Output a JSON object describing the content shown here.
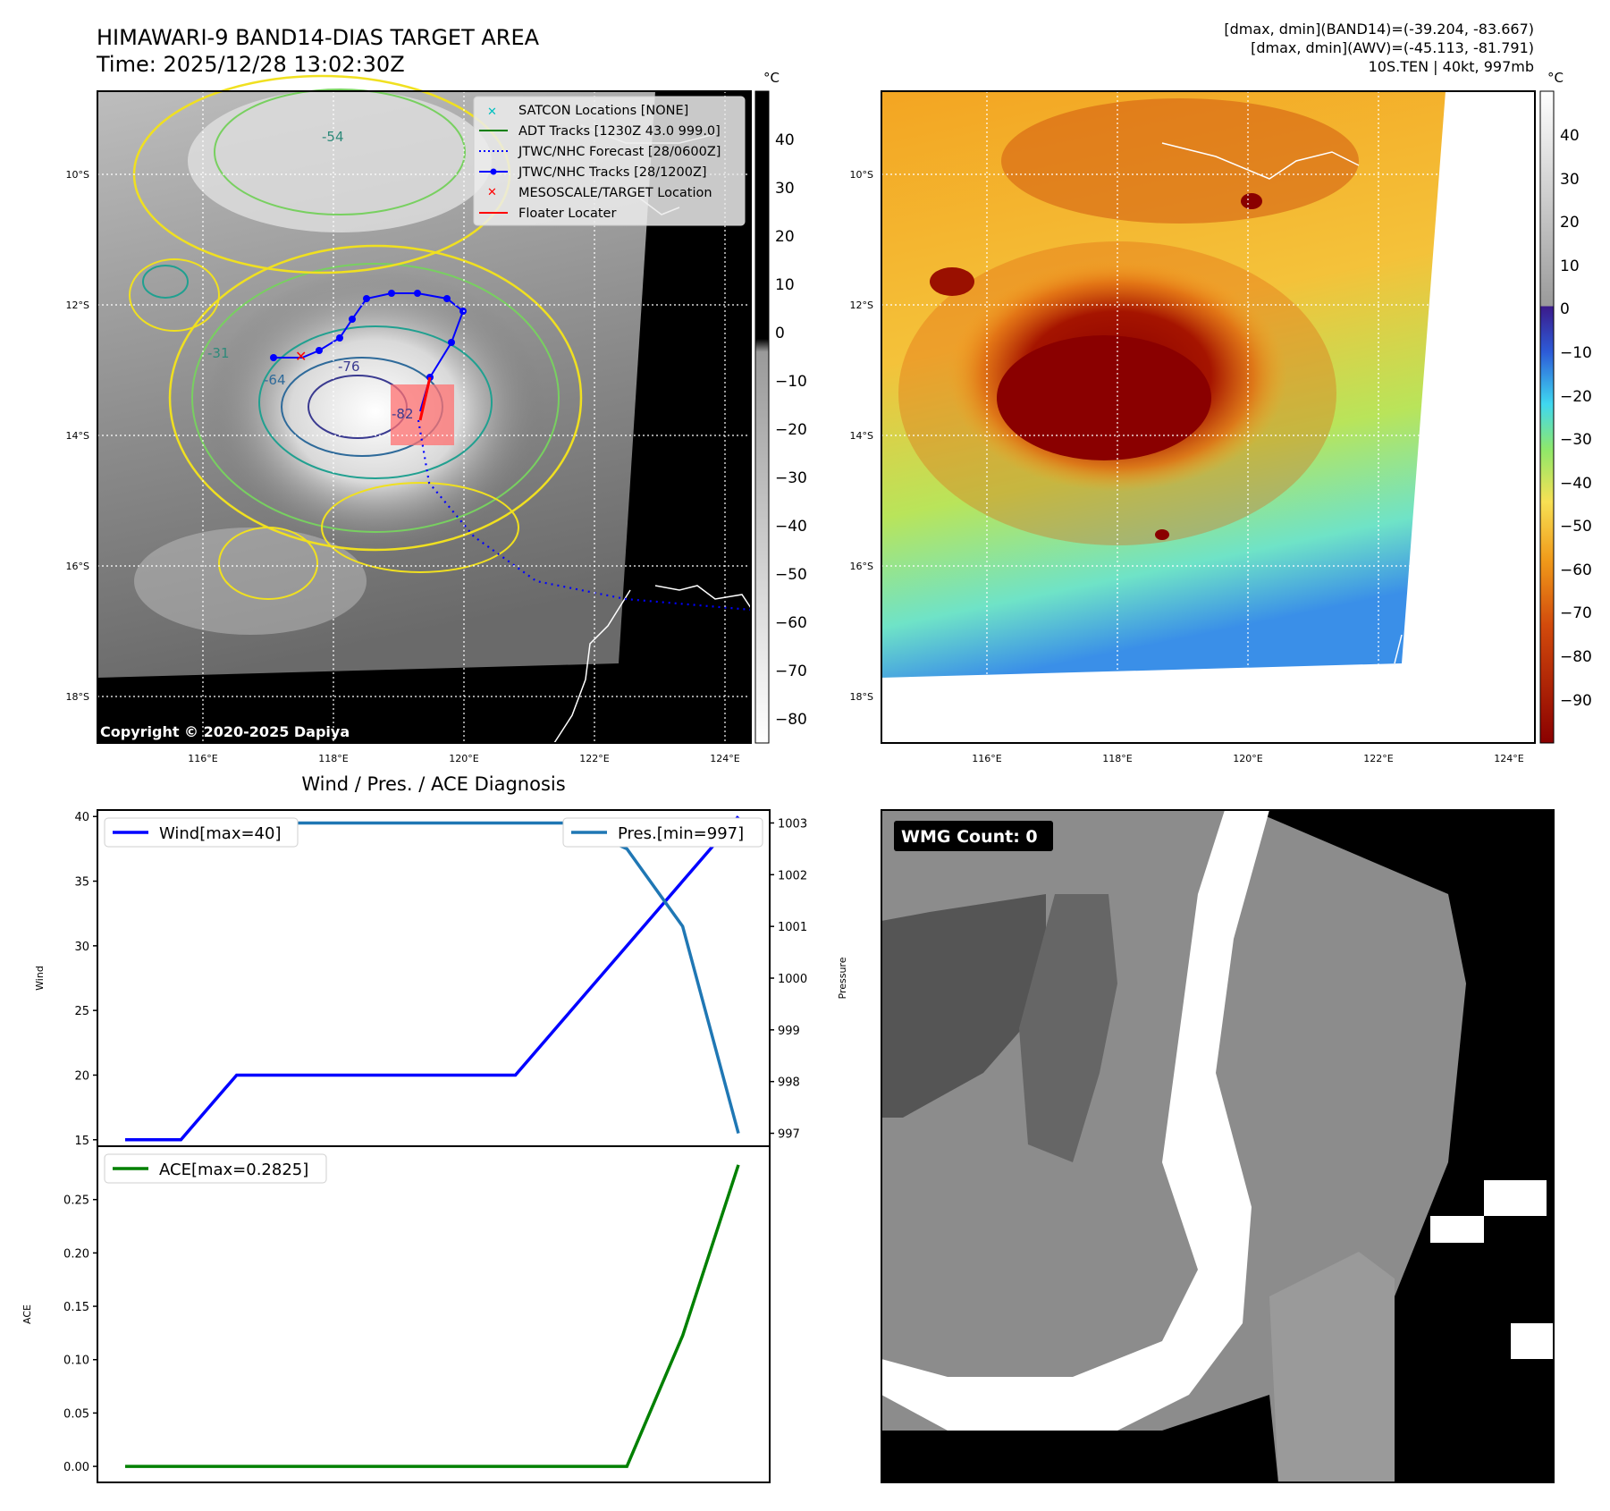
{
  "header": {
    "title_line1": "HIMAWARI-9 BAND14-DIAS TARGET AREA",
    "title_line2": "Time: 2025/12/28 13:02:30Z",
    "stats_line1": "[dmax, dmin](BAND14)=(-39.204, -83.667)",
    "stats_line2": "[dmax, dmin](AWV)=(-45.113, -81.791)",
    "stats_line3": "10S.TEN | 40kt, 997mb",
    "copyright": "Copyright © 2020-2025 Dapiya"
  },
  "map": {
    "lat_ticks": [
      "10°S",
      "12°S",
      "14°S",
      "16°S",
      "18°S"
    ],
    "lon_ticks": [
      "116°E",
      "118°E",
      "120°E",
      "122°E",
      "124°E"
    ],
    "contour_labels": [
      "-54",
      "-31",
      "-64",
      "-76",
      "-82"
    ],
    "legend": [
      {
        "label": "SATCON Locations [NONE]",
        "marker": "x",
        "color": "#00c0c0"
      },
      {
        "label": "ADT Tracks [1230Z 43.0 999.0]",
        "marker": "line",
        "color": "#007f00"
      },
      {
        "label": "JTWC/NHC Forecast [28/0600Z]",
        "marker": "dotted",
        "color": "#0000ff"
      },
      {
        "label": "JTWC/NHC Tracks [28/1200Z]",
        "marker": "line-dot",
        "color": "#0000ff"
      },
      {
        "label": "MESOSCALE/TARGET Location",
        "marker": "x",
        "color": "#ff0000"
      },
      {
        "label": "Floater Locater",
        "marker": "line",
        "color": "#ff0000"
      }
    ],
    "left_colorbar": {
      "unit": "°C",
      "ticks": [
        "40",
        "30",
        "20",
        "10",
        "0",
        "−10",
        "−20",
        "−30",
        "−40",
        "−50",
        "−60",
        "−70",
        "−80"
      ]
    },
    "right_colorbar": {
      "unit": "°C",
      "ticks": [
        "40",
        "30",
        "20",
        "10",
        "0",
        "−10",
        "−20",
        "−30",
        "−40",
        "−50",
        "−60",
        "−70",
        "−80",
        "−90"
      ]
    }
  },
  "wmg": {
    "label": "WMG Count: 0"
  },
  "chart_data": [
    {
      "type": "line",
      "title": "Wind / Pres. / ACE Diagnosis",
      "x": [
        0,
        1,
        2,
        3,
        4,
        5,
        6,
        7,
        8,
        9,
        10,
        11
      ],
      "series": [
        {
          "name": "Wind[max=40]",
          "axis": "left",
          "values": [
            15,
            15,
            20,
            20,
            20,
            20,
            20,
            20,
            25,
            30,
            35,
            40
          ],
          "color": "#0000ff"
        },
        {
          "name": "Pres.[min=997]",
          "axis": "right",
          "values": [
            1003,
            1003,
            1003,
            1003,
            1003,
            1003,
            1003,
            1003,
            1003,
            1002.5,
            1001,
            997
          ],
          "color": "#1f77b4"
        }
      ],
      "ylabel": "Wind",
      "ylabel_right": "Pressure",
      "ylim": [
        14.5,
        40.5
      ],
      "ylim_right": [
        996.75,
        1003.25
      ],
      "yticks": [
        15,
        20,
        25,
        30,
        35,
        40
      ],
      "yticks_right": [
        997,
        998,
        999,
        1000,
        1001,
        1002,
        1003
      ]
    },
    {
      "type": "line",
      "x": [
        0,
        1,
        2,
        3,
        4,
        5,
        6,
        7,
        8,
        9,
        10,
        11
      ],
      "series": [
        {
          "name": "ACE[max=0.2825]",
          "values": [
            0,
            0,
            0,
            0,
            0,
            0,
            0,
            0,
            0,
            0,
            0.1225,
            0.2825
          ],
          "color": "#008000"
        }
      ],
      "ylabel": "ACE",
      "ylim": [
        -0.015,
        0.3
      ],
      "yticks": [
        "0.00",
        "0.05",
        "0.10",
        "0.15",
        "0.20",
        "0.25"
      ]
    }
  ]
}
